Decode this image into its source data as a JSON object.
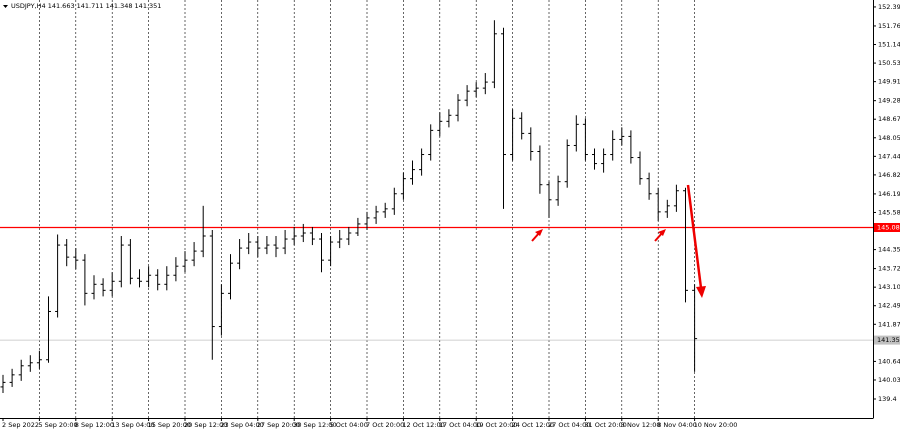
{
  "chart_data": {
    "type": "ohlc",
    "title": "USDJPY,H4  141.663 141.711 141.348 141.351",
    "color": "#000000",
    "categories": [
      "2 Sep 2022",
      null,
      null,
      null,
      "5 Sep 20:00",
      null,
      null,
      null,
      "8 Sep 12:00",
      null,
      null,
      null,
      "13 Sep 04:00",
      null,
      null,
      null,
      "15 Sep 20:00",
      null,
      null,
      null,
      "20 Sep 12:00",
      null,
      null,
      null,
      "23 Sep 04:00",
      null,
      null,
      null,
      "27 Sep 20:00",
      null,
      null,
      null,
      "30 Sep 12:00",
      null,
      null,
      null,
      "5 Oct 04:00",
      null,
      null,
      null,
      "7 Oct 20:00",
      null,
      null,
      null,
      "12 Oct 12:00",
      null,
      null,
      null,
      "17 Oct 04:00",
      null,
      null,
      null,
      "19 Oct 20:00",
      null,
      null,
      null,
      "24 Oct 12:00",
      null,
      null,
      null,
      "27 Oct 04:00",
      null,
      null,
      null,
      "31 Oct 20:00",
      null,
      null,
      null,
      "3 Nov 12:00",
      null,
      null,
      null,
      "8 Nov 04:00",
      null,
      null,
      null,
      "10 Nov 20:00"
    ],
    "open": [
      139.8,
      139.95,
      140.2,
      140.5,
      140.6,
      140.7,
      142.3,
      144.5,
      144.1,
      144.0,
      142.9,
      143.2,
      143.0,
      143.3,
      144.5,
      143.4,
      143.3,
      143.5,
      143.2,
      143.5,
      143.8,
      144.0,
      144.3,
      144.8,
      141.8,
      142.9,
      143.9,
      144.4,
      144.6,
      144.4,
      144.5,
      144.4,
      144.7,
      144.8,
      144.9,
      144.7,
      144.0,
      144.6,
      144.7,
      144.9,
      145.2,
      145.4,
      145.6,
      145.7,
      146.2,
      146.7,
      147.0,
      147.5,
      148.3,
      148.6,
      148.8,
      149.3,
      149.6,
      149.7,
      149.9,
      151.5,
      147.5,
      148.7,
      148.2,
      147.6,
      146.5,
      146.0,
      146.6,
      147.8,
      148.5,
      147.5,
      147.2,
      147.5,
      148.0,
      148.1,
      147.4,
      146.7,
      146.2,
      145.6,
      145.8,
      146.3,
      143.0
    ],
    "high": [
      140.2,
      140.4,
      140.7,
      140.85,
      141.0,
      142.8,
      144.85,
      144.7,
      144.4,
      144.2,
      143.5,
      143.4,
      143.6,
      144.8,
      144.7,
      143.7,
      143.8,
      143.7,
      143.8,
      144.1,
      144.3,
      144.6,
      145.8,
      145.0,
      143.2,
      144.2,
      144.7,
      144.9,
      144.8,
      144.8,
      144.8,
      145.0,
      145.1,
      145.2,
      145.1,
      144.9,
      144.8,
      145.0,
      145.1,
      145.4,
      145.6,
      145.8,
      145.9,
      146.4,
      146.9,
      147.3,
      147.7,
      148.5,
      148.9,
      149.0,
      149.5,
      149.8,
      149.9,
      150.2,
      151.95,
      151.7,
      149.0,
      148.9,
      148.4,
      147.8,
      146.6,
      146.8,
      148.0,
      148.8,
      148.7,
      147.7,
      147.7,
      148.3,
      148.4,
      148.3,
      147.6,
      146.9,
      146.4,
      146.0,
      146.5,
      146.4,
      143.2
    ],
    "low": [
      139.6,
      139.8,
      140.0,
      140.3,
      140.4,
      140.6,
      142.1,
      143.8,
      143.7,
      142.5,
      142.7,
      142.8,
      142.8,
      143.1,
      143.2,
      143.1,
      143.1,
      143.0,
      143.0,
      143.3,
      143.6,
      143.8,
      144.1,
      140.7,
      141.5,
      142.7,
      143.7,
      144.2,
      144.1,
      144.2,
      144.1,
      144.2,
      144.5,
      144.6,
      144.5,
      143.6,
      143.8,
      144.4,
      144.5,
      144.8,
      145.0,
      145.2,
      145.4,
      145.5,
      146.0,
      146.5,
      146.8,
      147.3,
      148.1,
      148.4,
      148.6,
      149.1,
      149.4,
      149.5,
      149.7,
      145.7,
      147.3,
      148.0,
      147.3,
      146.2,
      145.4,
      145.8,
      146.4,
      147.6,
      147.3,
      147.0,
      146.9,
      147.3,
      147.8,
      147.2,
      146.5,
      146.0,
      145.3,
      145.4,
      145.6,
      142.6,
      140.3
    ],
    "close": [
      139.95,
      140.2,
      140.5,
      140.6,
      140.7,
      142.3,
      144.5,
      144.1,
      144.0,
      142.9,
      143.2,
      143.0,
      143.3,
      144.5,
      143.4,
      143.3,
      143.5,
      143.2,
      143.5,
      143.8,
      144.0,
      144.3,
      144.8,
      141.8,
      142.9,
      143.9,
      144.4,
      144.6,
      144.4,
      144.5,
      144.4,
      144.7,
      144.8,
      144.9,
      144.7,
      144.0,
      144.6,
      144.7,
      144.9,
      145.2,
      145.4,
      145.6,
      145.7,
      146.2,
      146.7,
      147.0,
      147.5,
      148.3,
      148.6,
      148.8,
      149.3,
      149.6,
      149.7,
      149.9,
      151.5,
      147.5,
      148.7,
      148.2,
      147.6,
      146.5,
      146.0,
      146.6,
      147.8,
      148.5,
      147.5,
      147.2,
      147.5,
      148.0,
      148.1,
      147.4,
      146.7,
      146.2,
      145.6,
      145.8,
      146.3,
      143.0,
      141.4
    ],
    "ylim": [
      138.77,
      152.62
    ],
    "yticks": [
      152.39,
      151.76,
      151.145,
      150.53,
      149.915,
      149.285,
      148.67,
      148.055,
      147.44,
      146.825,
      146.195,
      145.58,
      144.35,
      143.72,
      143.105,
      142.49,
      141.875,
      140.645,
      140.03,
      139.4
    ],
    "levels": [
      {
        "value": 145.082,
        "color": "#ff0000"
      },
      {
        "value": 141.351,
        "color": "#c0c0c0"
      }
    ],
    "grid": true
  }
}
